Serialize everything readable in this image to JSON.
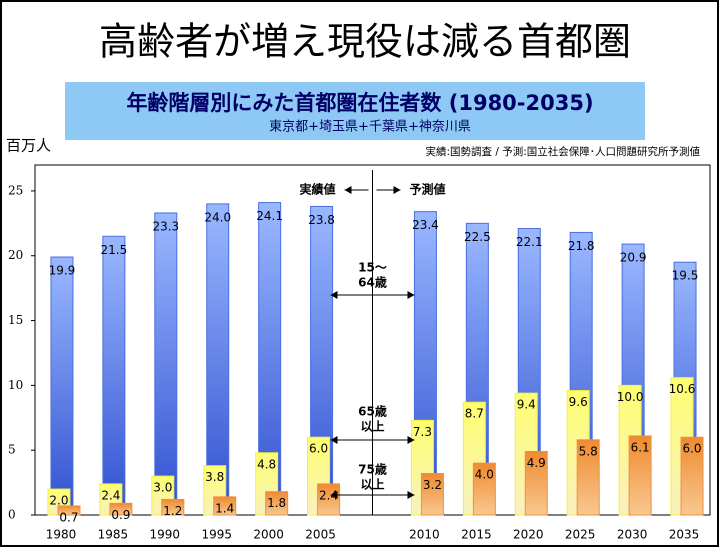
{
  "chart_data": {
    "type": "bar",
    "title": "高齢者が増え現役は減る首都圏",
    "subtitle": "年齢階層別にみた首都圏在住者数 (1980-2035)",
    "subtitle2": "東京都+埼玉県+千葉県+神奈川県",
    "y_label": "百万人",
    "source": "実績:国勢調査 / 予測:国立社会保障･人口問題研究所予測値",
    "annotations": [
      {
        "lines": [
          "実績値"
        ]
      },
      {
        "lines": [
          "予測値"
        ]
      },
      {
        "lines": [
          "15～",
          "64歳"
        ]
      },
      {
        "lines": [
          "65歳",
          "以上"
        ]
      },
      {
        "lines": [
          "75歳",
          "以上"
        ]
      }
    ],
    "categories": [
      "1980",
      "1985",
      "1990",
      "1995",
      "2000",
      "2005",
      null,
      "2010",
      "2015",
      "2020",
      "2025",
      "2030",
      "2035"
    ],
    "series": [
      {
        "color": "#4a6ee0",
        "values": [
          19.9,
          21.5,
          23.3,
          24.0,
          24.1,
          23.8,
          null,
          23.4,
          22.5,
          22.1,
          21.8,
          20.9,
          19.5
        ],
        "value_labels": [
          "19.9",
          "21.5",
          "23.3",
          "24.0",
          "24.1",
          "23.8",
          null,
          "23.4",
          "22.5",
          "22.1",
          "21.8",
          "20.9",
          "19.5"
        ]
      },
      {
        "color": "#f4f040",
        "values": [
          2.0,
          2.4,
          3.0,
          3.8,
          4.8,
          6.0,
          null,
          7.3,
          8.7,
          9.4,
          9.6,
          10.0,
          10.6
        ],
        "value_labels": [
          "2.0",
          "2.4",
          "3.0",
          "3.8",
          "4.8",
          "6.0",
          null,
          "7.3",
          "8.7",
          "9.4",
          "9.6",
          "10.0",
          "10.6"
        ]
      },
      {
        "color": "#f09040",
        "values": [
          0.7,
          0.9,
          1.2,
          1.4,
          1.8,
          2.4,
          null,
          3.2,
          4.0,
          4.9,
          5.8,
          6.1,
          6.0
        ],
        "value_labels": [
          "0.7",
          "0.9",
          "1.2",
          "1.4",
          "1.8",
          "2.4",
          null,
          "3.2",
          "4.0",
          "4.9",
          "5.8",
          "6.1",
          "6.0"
        ]
      }
    ],
    "ylim": [
      0,
      27
    ],
    "yticks": [
      0,
      5,
      10,
      15,
      20,
      25
    ]
  }
}
